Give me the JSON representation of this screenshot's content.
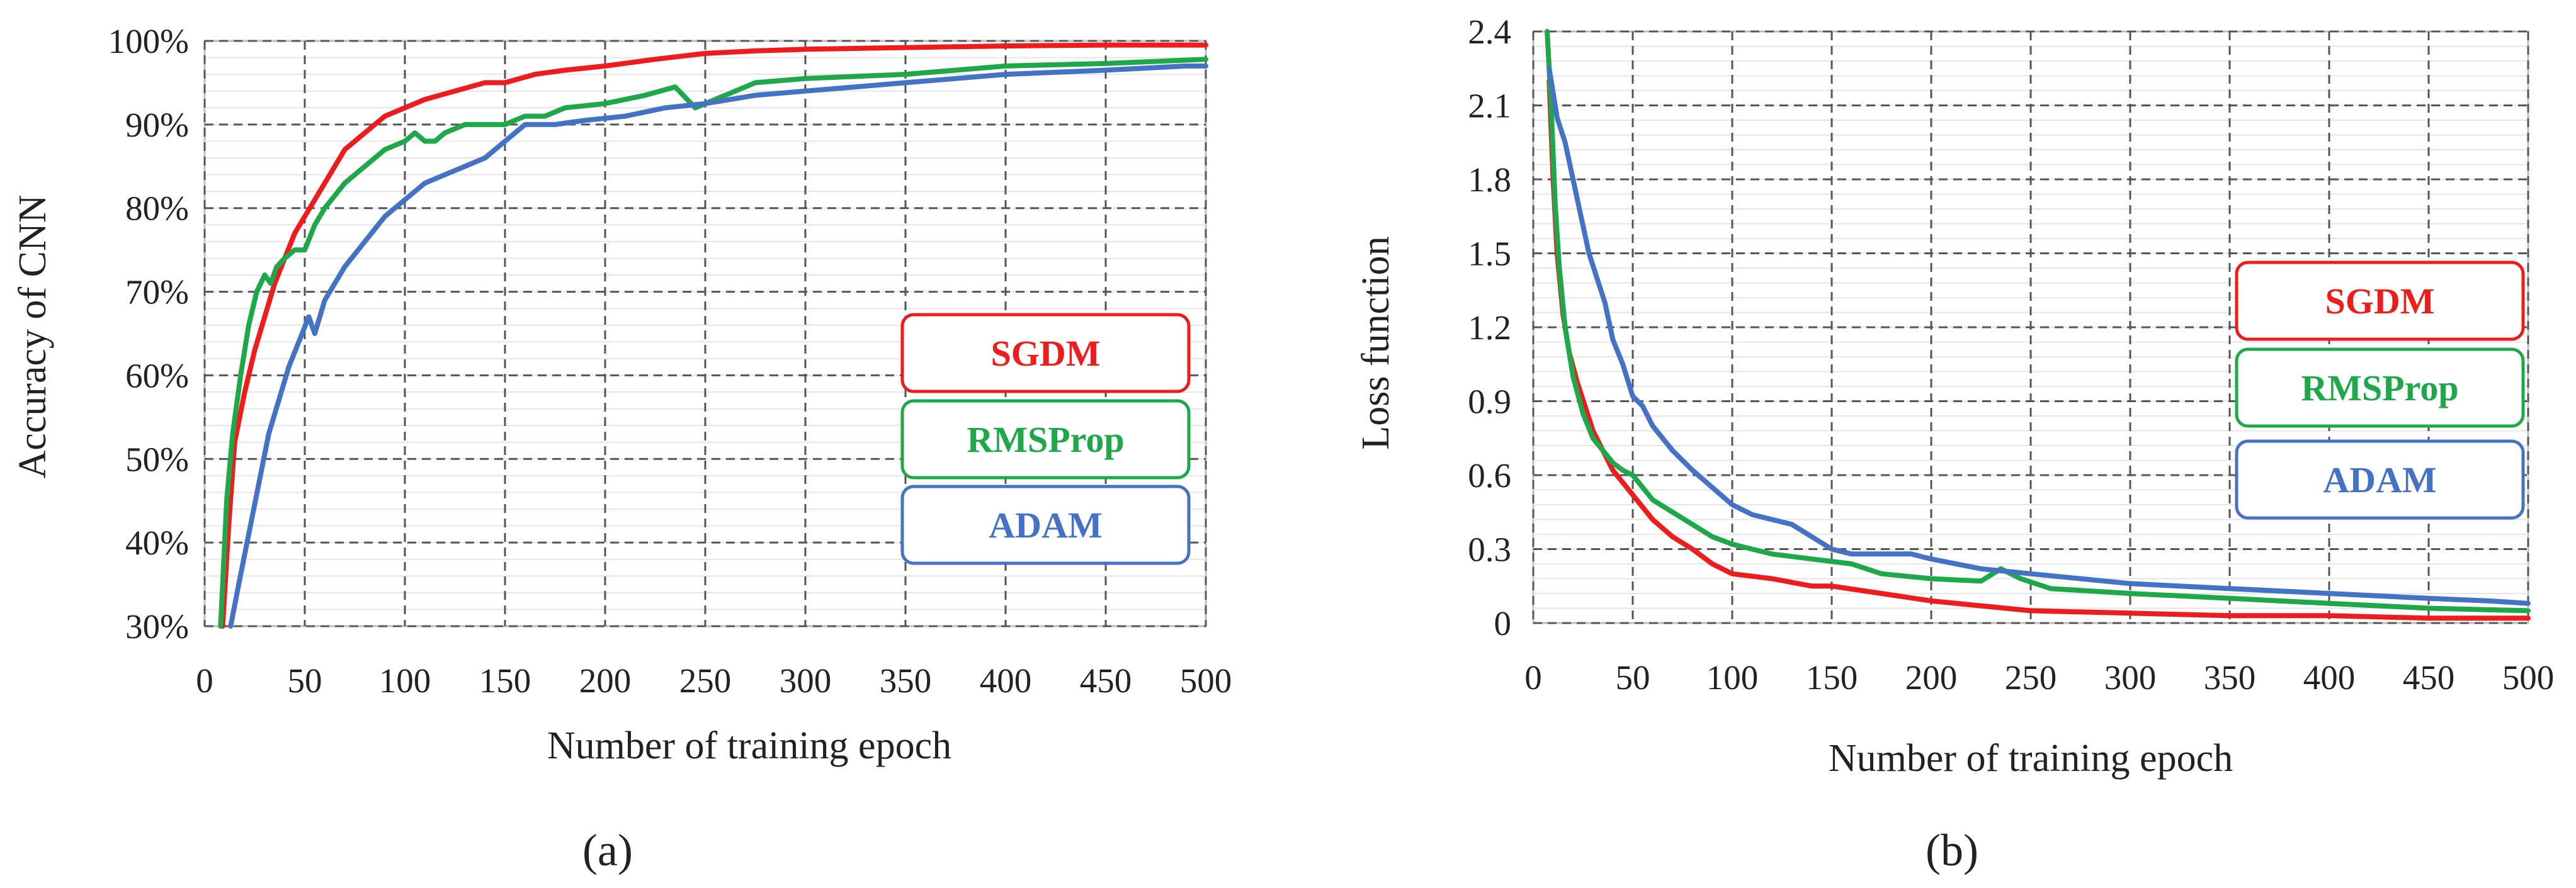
{
  "chart_data": [
    {
      "type": "line",
      "panel_label": "a",
      "panel_label_display": "(a)",
      "xlabel": "Number of training epoch",
      "ylabel": "Accuracy of  CNN",
      "xlim": [
        0,
        500
      ],
      "ylim": [
        30,
        100
      ],
      "x_ticks": [
        0,
        50,
        100,
        150,
        200,
        250,
        300,
        350,
        400,
        450,
        500
      ],
      "x_tick_labels": [
        "0",
        "50",
        "100",
        "150",
        "200",
        "250",
        "300",
        "350",
        "400",
        "450",
        "500"
      ],
      "y_ticks": [
        30,
        40,
        50,
        60,
        70,
        80,
        90,
        100
      ],
      "y_tick_labels": [
        "30%",
        "40%",
        "50%",
        "60%",
        "70%",
        "80%",
        "90%",
        "100%"
      ],
      "grid": true,
      "legend_position": "right",
      "series": [
        {
          "name": "SGDM",
          "color": "#ee1c1c",
          "points": [
            [
              9,
              30
            ],
            [
              12,
              42
            ],
            [
              15,
              52
            ],
            [
              20,
              58
            ],
            [
              25,
              63
            ],
            [
              30,
              67
            ],
            [
              35,
              71
            ],
            [
              40,
              74
            ],
            [
              45,
              77
            ],
            [
              50,
              79
            ],
            [
              55,
              81
            ],
            [
              60,
              83
            ],
            [
              65,
              85
            ],
            [
              70,
              87
            ],
            [
              75,
              88
            ],
            [
              80,
              89
            ],
            [
              90,
              91
            ],
            [
              100,
              92
            ],
            [
              110,
              93
            ],
            [
              125,
              94
            ],
            [
              140,
              95
            ],
            [
              150,
              95
            ],
            [
              165,
              96
            ],
            [
              180,
              96.5
            ],
            [
              200,
              97
            ],
            [
              225,
              97.8
            ],
            [
              250,
              98.5
            ],
            [
              275,
              98.8
            ],
            [
              300,
              99
            ],
            [
              350,
              99.2
            ],
            [
              400,
              99.4
            ],
            [
              450,
              99.5
            ],
            [
              500,
              99.5
            ]
          ]
        },
        {
          "name": "RMSProp",
          "color": "#1fa84a",
          "points": [
            [
              8,
              30
            ],
            [
              11,
              45
            ],
            [
              14,
              53
            ],
            [
              18,
              60
            ],
            [
              22,
              66
            ],
            [
              26,
              70
            ],
            [
              30,
              72
            ],
            [
              33,
              71
            ],
            [
              36,
              73
            ],
            [
              40,
              74
            ],
            [
              45,
              75
            ],
            [
              50,
              75
            ],
            [
              55,
              78
            ],
            [
              60,
              80
            ],
            [
              70,
              83
            ],
            [
              80,
              85
            ],
            [
              90,
              87
            ],
            [
              100,
              88
            ],
            [
              105,
              89
            ],
            [
              110,
              88
            ],
            [
              115,
              88
            ],
            [
              120,
              89
            ],
            [
              130,
              90
            ],
            [
              140,
              90
            ],
            [
              150,
              90
            ],
            [
              160,
              91
            ],
            [
              170,
              91
            ],
            [
              180,
              92
            ],
            [
              200,
              92.5
            ],
            [
              220,
              93.5
            ],
            [
              235,
              94.5
            ],
            [
              245,
              92
            ],
            [
              255,
              93
            ],
            [
              275,
              95
            ],
            [
              300,
              95.5
            ],
            [
              350,
              96
            ],
            [
              400,
              97
            ],
            [
              450,
              97.3
            ],
            [
              500,
              97.8
            ]
          ]
        },
        {
          "name": "ADAM",
          "color": "#4472c4",
          "points": [
            [
              13,
              30
            ],
            [
              17,
              35
            ],
            [
              22,
              41
            ],
            [
              27,
              47
            ],
            [
              32,
              53
            ],
            [
              37,
              57
            ],
            [
              42,
              61
            ],
            [
              47,
              64
            ],
            [
              52,
              67
            ],
            [
              55,
              65
            ],
            [
              60,
              69
            ],
            [
              70,
              73
            ],
            [
              80,
              76
            ],
            [
              90,
              79
            ],
            [
              100,
              81
            ],
            [
              110,
              83
            ],
            [
              120,
              84
            ],
            [
              130,
              85
            ],
            [
              140,
              86
            ],
            [
              150,
              88
            ],
            [
              160,
              90
            ],
            [
              175,
              90
            ],
            [
              190,
              90.5
            ],
            [
              210,
              91
            ],
            [
              230,
              92
            ],
            [
              250,
              92.5
            ],
            [
              275,
              93.5
            ],
            [
              300,
              94
            ],
            [
              325,
              94.5
            ],
            [
              350,
              95
            ],
            [
              375,
              95.5
            ],
            [
              400,
              96
            ],
            [
              450,
              96.5
            ],
            [
              490,
              97
            ],
            [
              500,
              97
            ]
          ]
        }
      ]
    },
    {
      "type": "line",
      "panel_label": "b",
      "panel_label_display": "(b)",
      "xlabel": "Number of training epoch",
      "ylabel": "Loss function",
      "xlim": [
        0,
        500
      ],
      "ylim": [
        0,
        2.4
      ],
      "x_ticks": [
        0,
        50,
        100,
        150,
        200,
        250,
        300,
        350,
        400,
        450,
        500
      ],
      "x_tick_labels": [
        "0",
        "50",
        "100",
        "150",
        "200",
        "250",
        "300",
        "350",
        "400",
        "450",
        "500"
      ],
      "y_ticks": [
        0,
        0.3,
        0.6,
        0.9,
        1.2,
        1.5,
        1.8,
        2.1,
        2.4
      ],
      "y_tick_labels": [
        "0",
        "0.3",
        "0.6",
        "0.9",
        "1.2",
        "1.5",
        "1.8",
        "2.1",
        "2.4"
      ],
      "grid": true,
      "legend_position": "right",
      "series": [
        {
          "name": "SGDM",
          "color": "#ee1c1c",
          "points": [
            [
              8,
              2.2
            ],
            [
              10,
              1.8
            ],
            [
              12,
              1.5
            ],
            [
              15,
              1.25
            ],
            [
              18,
              1.1
            ],
            [
              22,
              0.98
            ],
            [
              26,
              0.88
            ],
            [
              30,
              0.78
            ],
            [
              35,
              0.7
            ],
            [
              40,
              0.62
            ],
            [
              50,
              0.52
            ],
            [
              60,
              0.42
            ],
            [
              70,
              0.35
            ],
            [
              80,
              0.3
            ],
            [
              90,
              0.24
            ],
            [
              100,
              0.2
            ],
            [
              120,
              0.18
            ],
            [
              140,
              0.15
            ],
            [
              150,
              0.15
            ],
            [
              175,
              0.12
            ],
            [
              200,
              0.09
            ],
            [
              225,
              0.07
            ],
            [
              250,
              0.05
            ],
            [
              300,
              0.04
            ],
            [
              350,
              0.03
            ],
            [
              400,
              0.03
            ],
            [
              450,
              0.02
            ],
            [
              500,
              0.02
            ]
          ]
        },
        {
          "name": "RMSProp",
          "color": "#1fa84a",
          "points": [
            [
              7,
              2.4
            ],
            [
              9,
              2.1
            ],
            [
              11,
              1.7
            ],
            [
              13,
              1.45
            ],
            [
              16,
              1.2
            ],
            [
              20,
              1.0
            ],
            [
              25,
              0.85
            ],
            [
              30,
              0.75
            ],
            [
              35,
              0.7
            ],
            [
              40,
              0.65
            ],
            [
              45,
              0.62
            ],
            [
              50,
              0.6
            ],
            [
              60,
              0.5
            ],
            [
              70,
              0.45
            ],
            [
              80,
              0.4
            ],
            [
              90,
              0.35
            ],
            [
              100,
              0.32
            ],
            [
              120,
              0.28
            ],
            [
              140,
              0.26
            ],
            [
              160,
              0.24
            ],
            [
              175,
              0.2
            ],
            [
              200,
              0.18
            ],
            [
              225,
              0.17
            ],
            [
              235,
              0.22
            ],
            [
              245,
              0.18
            ],
            [
              260,
              0.14
            ],
            [
              300,
              0.12
            ],
            [
              350,
              0.1
            ],
            [
              400,
              0.08
            ],
            [
              450,
              0.06
            ],
            [
              500,
              0.05
            ]
          ]
        },
        {
          "name": "ADAM",
          "color": "#4472c4",
          "points": [
            [
              8,
              2.25
            ],
            [
              12,
              2.05
            ],
            [
              16,
              1.95
            ],
            [
              20,
              1.8
            ],
            [
              24,
              1.65
            ],
            [
              28,
              1.5
            ],
            [
              32,
              1.4
            ],
            [
              36,
              1.3
            ],
            [
              40,
              1.15
            ],
            [
              45,
              1.05
            ],
            [
              50,
              0.92
            ],
            [
              55,
              0.88
            ],
            [
              60,
              0.8
            ],
            [
              70,
              0.7
            ],
            [
              80,
              0.62
            ],
            [
              90,
              0.55
            ],
            [
              100,
              0.48
            ],
            [
              110,
              0.44
            ],
            [
              120,
              0.42
            ],
            [
              130,
              0.4
            ],
            [
              140,
              0.35
            ],
            [
              150,
              0.3
            ],
            [
              160,
              0.28
            ],
            [
              175,
              0.28
            ],
            [
              190,
              0.28
            ],
            [
              200,
              0.26
            ],
            [
              225,
              0.22
            ],
            [
              250,
              0.2
            ],
            [
              275,
              0.18
            ],
            [
              300,
              0.16
            ],
            [
              350,
              0.14
            ],
            [
              400,
              0.12
            ],
            [
              450,
              0.1
            ],
            [
              480,
              0.09
            ],
            [
              500,
              0.08
            ]
          ]
        }
      ]
    }
  ]
}
